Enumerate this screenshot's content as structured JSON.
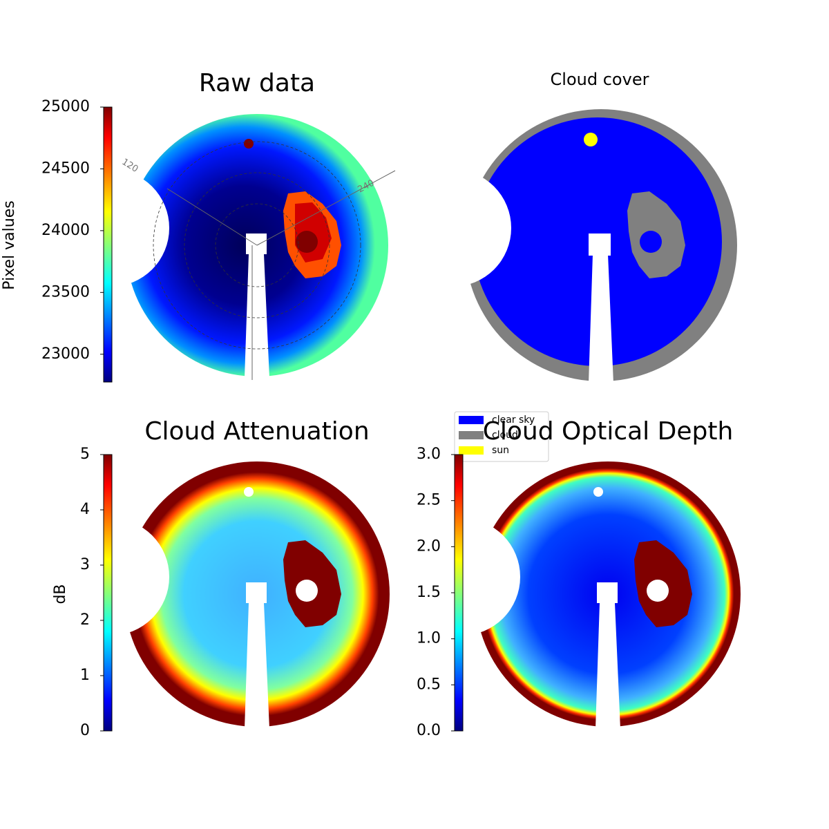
{
  "chart_data": [
    {
      "type": "image",
      "title": "Raw data",
      "polar_labels": [
        "120",
        "240"
      ],
      "colorbar": {
        "label": "Pixel values",
        "lim": [
          22775,
          25000
        ],
        "ticks": [
          23000,
          23500,
          24000,
          24500,
          25000
        ]
      }
    },
    {
      "type": "image",
      "title": "Cloud cover",
      "series": [
        {
          "name": "clear sky",
          "color": "#0000ff"
        },
        {
          "name": "cloud",
          "color": "#808080"
        },
        {
          "name": "sun",
          "color": "#ffff00"
        }
      ]
    },
    {
      "type": "image",
      "title": "Cloud Attenuation",
      "colorbar": {
        "label": "dB",
        "lim": [
          0,
          5
        ],
        "ticks": [
          0,
          1,
          2,
          3,
          4,
          5
        ]
      }
    },
    {
      "type": "image",
      "title": "Cloud Optical Depth",
      "colorbar": {
        "lim": [
          0,
          3
        ],
        "ticks": [
          {
            "value": 0,
            "label": "0.0"
          },
          {
            "value": 0.5,
            "label": "0.5"
          },
          {
            "value": 1,
            "label": "1.0"
          },
          {
            "value": 1.5,
            "label": "1.5"
          },
          {
            "value": 2,
            "label": "2.0"
          },
          {
            "value": 2.5,
            "label": "2.5"
          },
          {
            "value": 3,
            "label": "3.0"
          }
        ]
      }
    }
  ]
}
